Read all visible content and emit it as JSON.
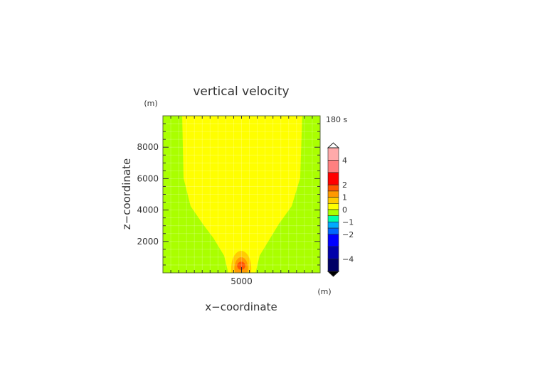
{
  "chart_data": {
    "type": "contour",
    "title": "vertical velocity",
    "xlabel": "x−coordinate",
    "ylabel": "z−coordinate",
    "x_unit": "(m)",
    "y_unit": "(m)",
    "time_label": "180 s",
    "xlim": [
      0,
      10000
    ],
    "ylim": [
      0,
      10000
    ],
    "x_ticks": [
      {
        "value": 5000,
        "label": "5000"
      }
    ],
    "y_ticks": [
      {
        "value": 2000,
        "label": "2000"
      },
      {
        "value": 4000,
        "label": "4000"
      },
      {
        "value": 6000,
        "label": "6000"
      },
      {
        "value": 8000,
        "label": "8000"
      }
    ],
    "grid": true,
    "background_level_color": "#aaff00",
    "regions": [
      {
        "level": "0 to 0.5",
        "color": "#ffff00",
        "boundary": [
          [
            1220,
            10000
          ],
          [
            1310,
            6040
          ],
          [
            1760,
            4250
          ],
          [
            2530,
            3120
          ],
          [
            3210,
            2220
          ],
          [
            3890,
            1100
          ],
          [
            4210,
            0
          ],
          [
            5840,
            0
          ],
          [
            6150,
            1100
          ],
          [
            6830,
            2220
          ],
          [
            7380,
            3120
          ],
          [
            8190,
            4250
          ],
          [
            8730,
            6040
          ],
          [
            8870,
            10000
          ]
        ]
      },
      {
        "level": "0.5 to 1",
        "color": "#ffcc00",
        "ellipse": {
          "cx": 4980,
          "cz": 300,
          "rx": 640,
          "rz": 1100
        }
      },
      {
        "level": "1 to 1.5",
        "color": "#ff9900",
        "ellipse": {
          "cx": 4980,
          "cz": 300,
          "rx": 430,
          "rz": 700
        }
      },
      {
        "level": "1.5 to 2",
        "color": "#ff5500",
        "ellipse": {
          "cx": 4980,
          "cz": 450,
          "rx": 260,
          "rz": 260
        }
      }
    ],
    "colorbar": {
      "labels": [
        {
          "value": 4,
          "label": "4"
        },
        {
          "value": 2,
          "label": "2"
        },
        {
          "value": 1,
          "label": "1"
        },
        {
          "value": 0,
          "label": "0"
        },
        {
          "value": -1,
          "label": "−1"
        },
        {
          "value": -2,
          "label": "−2"
        },
        {
          "value": -4,
          "label": "−4"
        }
      ],
      "bands": [
        {
          "from": 4,
          "to": 5,
          "color": "#ffaaaa"
        },
        {
          "from": 3,
          "to": 4,
          "color": "#ff8080"
        },
        {
          "from": 2,
          "to": 3,
          "color": "#ff0000"
        },
        {
          "from": 1.5,
          "to": 2,
          "color": "#ff5500"
        },
        {
          "from": 1,
          "to": 1.5,
          "color": "#ff9900"
        },
        {
          "from": 0.5,
          "to": 1,
          "color": "#ffcc00"
        },
        {
          "from": 0,
          "to": 0.5,
          "color": "#ffff00"
        },
        {
          "from": -0.5,
          "to": 0,
          "color": "#aaff00"
        },
        {
          "from": -1,
          "to": -0.5,
          "color": "#00ffaa"
        },
        {
          "from": -1.5,
          "to": -1,
          "color": "#00aaff"
        },
        {
          "from": -2,
          "to": -1.5,
          "color": "#0066ff"
        },
        {
          "from": -3,
          "to": -2,
          "color": "#0000ff"
        },
        {
          "from": -4,
          "to": -3,
          "color": "#0000aa"
        },
        {
          "from": -5,
          "to": -4,
          "color": "#000066"
        }
      ],
      "range": [
        -5,
        5
      ],
      "extend": "both"
    }
  }
}
